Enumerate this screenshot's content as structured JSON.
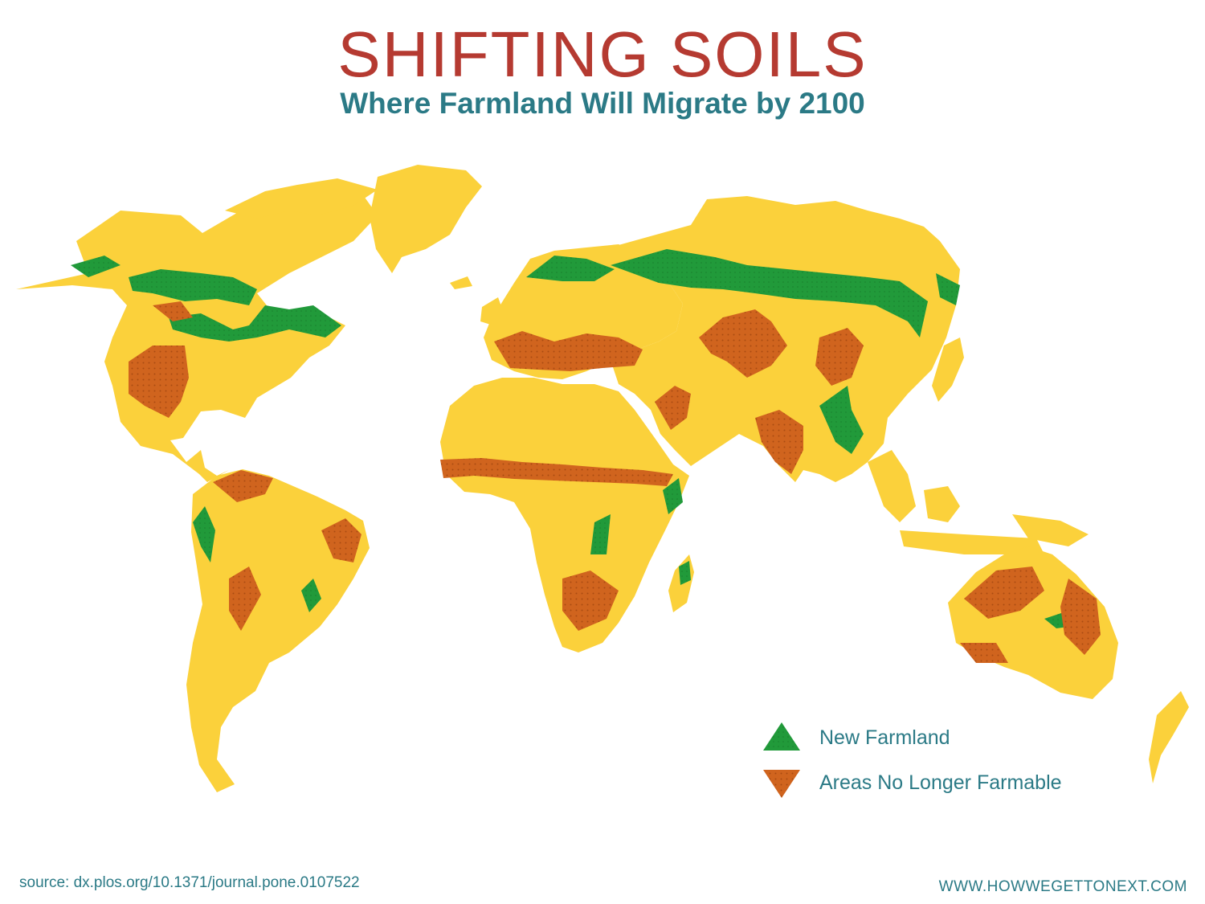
{
  "header": {
    "title": "SHIFTING SOILS",
    "subtitle": "Where Farmland Will Migrate by 2100"
  },
  "legend": {
    "items": [
      {
        "key": "new",
        "label": "New Farmland",
        "color": "#219a3a",
        "icon": "green-triangle-up"
      },
      {
        "key": "lost",
        "label": "Areas No Longer Farmable",
        "color": "#d0641e",
        "icon": "orange-triangle-down"
      }
    ]
  },
  "colors": {
    "land": "#fbd13b",
    "new_farmland": "#219a3a",
    "no_longer_farmable": "#d0641e",
    "title": "#b53a31",
    "text": "#2b7a86"
  },
  "footer": {
    "source": "source: dx.plos.org/10.1371/journal.pone.0107522",
    "site": "WWW.HOWWEGETTONEXT.COM"
  }
}
